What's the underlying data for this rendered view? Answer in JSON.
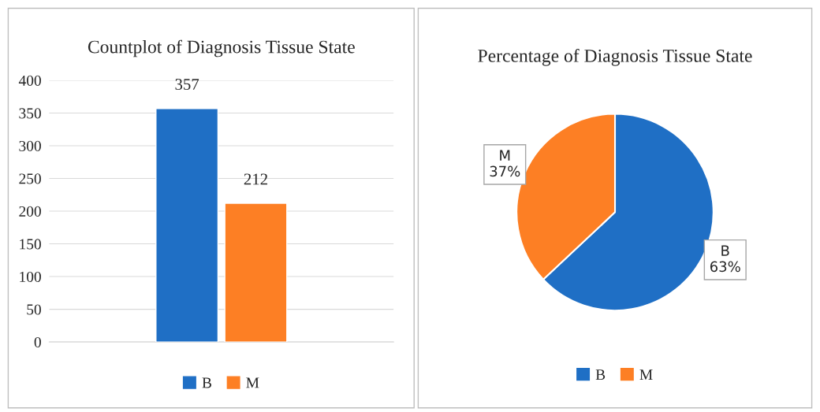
{
  "chart_data": [
    {
      "type": "bar",
      "title": "Countplot of Diagnosis Tissue State",
      "categories": [
        null
      ],
      "series": [
        {
          "name": "B",
          "color": "#1f6fc5",
          "values": [
            357
          ]
        },
        {
          "name": "M",
          "color": "#fd7f24",
          "values": [
            212
          ]
        }
      ],
      "ylim": [
        0,
        400
      ],
      "yticks": [
        0,
        50,
        100,
        150,
        200,
        250,
        300,
        350,
        400
      ],
      "grid": "y",
      "legend": "bottom",
      "data_labels": true
    },
    {
      "type": "pie",
      "title": "Percentage of Diagnosis Tissue State",
      "categories": [
        "B",
        "M"
      ],
      "values": [
        63,
        37
      ],
      "colors": [
        "#1f6fc5",
        "#fd7f24"
      ],
      "value_labels": [
        "63%",
        "37%"
      ],
      "legend": "bottom"
    }
  ]
}
